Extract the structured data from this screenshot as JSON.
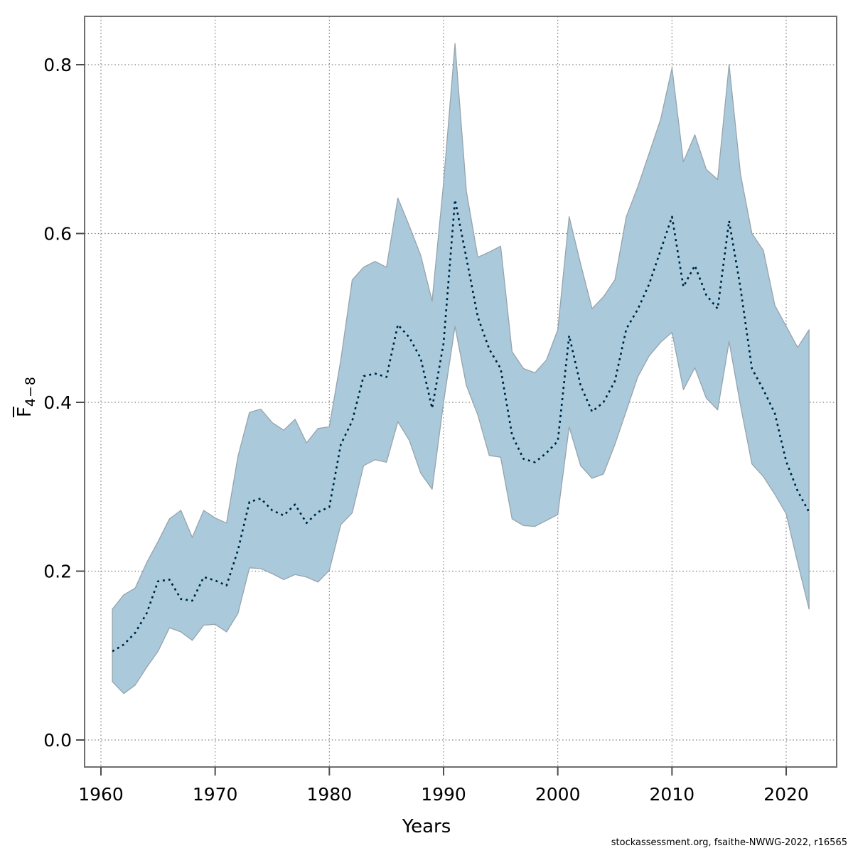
{
  "chart_data": {
    "type": "line",
    "subtype": "line-with-confidence-band",
    "title": "",
    "xlabel": "Years",
    "ylabel_main": "F",
    "ylabel_sub": "4−8",
    "footer": "stockassessment.org, fsaithe-NWWG-2022, r16565",
    "x_ticks": [
      1960,
      1970,
      1980,
      1990,
      2000,
      2010,
      2020
    ],
    "y_ticks": [
      0.0,
      0.2,
      0.4,
      0.6,
      0.8
    ],
    "xlim": [
      1958.6,
      2024.4
    ],
    "ylim": [
      -0.032,
      0.857
    ],
    "grid": true,
    "legend_position": "none",
    "years": [
      1961,
      1962,
      1963,
      1964,
      1965,
      1966,
      1967,
      1968,
      1969,
      1970,
      1971,
      1972,
      1973,
      1974,
      1975,
      1976,
      1977,
      1978,
      1979,
      1980,
      1981,
      1982,
      1983,
      1984,
      1985,
      1986,
      1987,
      1988,
      1989,
      1990,
      1991,
      1992,
      1993,
      1994,
      1995,
      1996,
      1997,
      1998,
      1999,
      2000,
      2001,
      2002,
      2003,
      2004,
      2005,
      2006,
      2007,
      2008,
      2009,
      2010,
      2011,
      2012,
      2013,
      2014,
      2015,
      2016,
      2017,
      2018,
      2019,
      2020,
      2021,
      2022
    ],
    "series": [
      {
        "name": "mean_F",
        "values": [
          0.105,
          0.113,
          0.127,
          0.15,
          0.188,
          0.19,
          0.167,
          0.165,
          0.193,
          0.189,
          0.183,
          0.225,
          0.282,
          0.286,
          0.272,
          0.266,
          0.279,
          0.257,
          0.27,
          0.276,
          0.35,
          0.378,
          0.431,
          0.434,
          0.43,
          0.492,
          0.477,
          0.452,
          0.393,
          0.47,
          0.64,
          0.571,
          0.501,
          0.463,
          0.44,
          0.361,
          0.333,
          0.329,
          0.34,
          0.354,
          0.479,
          0.42,
          0.389,
          0.4,
          0.425,
          0.487,
          0.51,
          0.54,
          0.58,
          0.62,
          0.537,
          0.562,
          0.527,
          0.511,
          0.615,
          0.535,
          0.44,
          0.415,
          0.387,
          0.33,
          0.295,
          0.27
        ]
      },
      {
        "name": "ci_upper",
        "values": [
          0.155,
          0.172,
          0.18,
          0.21,
          0.235,
          0.262,
          0.272,
          0.24,
          0.272,
          0.263,
          0.257,
          0.336,
          0.388,
          0.392,
          0.376,
          0.367,
          0.38,
          0.352,
          0.369,
          0.371,
          0.45,
          0.545,
          0.56,
          0.567,
          0.56,
          0.642,
          0.609,
          0.574,
          0.52,
          0.66,
          0.825,
          0.65,
          0.572,
          0.578,
          0.585,
          0.46,
          0.44,
          0.435,
          0.45,
          0.486,
          0.62,
          0.564,
          0.511,
          0.525,
          0.545,
          0.62,
          0.655,
          0.695,
          0.735,
          0.796,
          0.685,
          0.717,
          0.676,
          0.664,
          0.8,
          0.67,
          0.6,
          0.58,
          0.515,
          0.49,
          0.465,
          0.486
        ]
      },
      {
        "name": "ci_lower",
        "values": [
          0.069,
          0.055,
          0.065,
          0.086,
          0.105,
          0.133,
          0.128,
          0.118,
          0.136,
          0.137,
          0.128,
          0.15,
          0.204,
          0.203,
          0.197,
          0.19,
          0.196,
          0.193,
          0.187,
          0.201,
          0.255,
          0.269,
          0.325,
          0.332,
          0.329,
          0.377,
          0.355,
          0.316,
          0.297,
          0.4,
          0.49,
          0.42,
          0.385,
          0.337,
          0.335,
          0.262,
          0.254,
          0.253,
          0.26,
          0.267,
          0.371,
          0.325,
          0.31,
          0.315,
          0.35,
          0.39,
          0.43,
          0.455,
          0.471,
          0.483,
          0.415,
          0.441,
          0.405,
          0.391,
          0.472,
          0.396,
          0.327,
          0.312,
          0.291,
          0.268,
          0.21,
          0.155
        ]
      }
    ],
    "colors": {
      "band_fill": "#aac9da",
      "band_edge": "#96a4ad",
      "line_halo": "#9ed2ee",
      "line_dots": "#0d1b26",
      "grid": "#7d7d7d",
      "frame": "#6e6e6e",
      "tick": "#4d4d4d",
      "text": "#000000",
      "background": "#ffffff"
    }
  }
}
